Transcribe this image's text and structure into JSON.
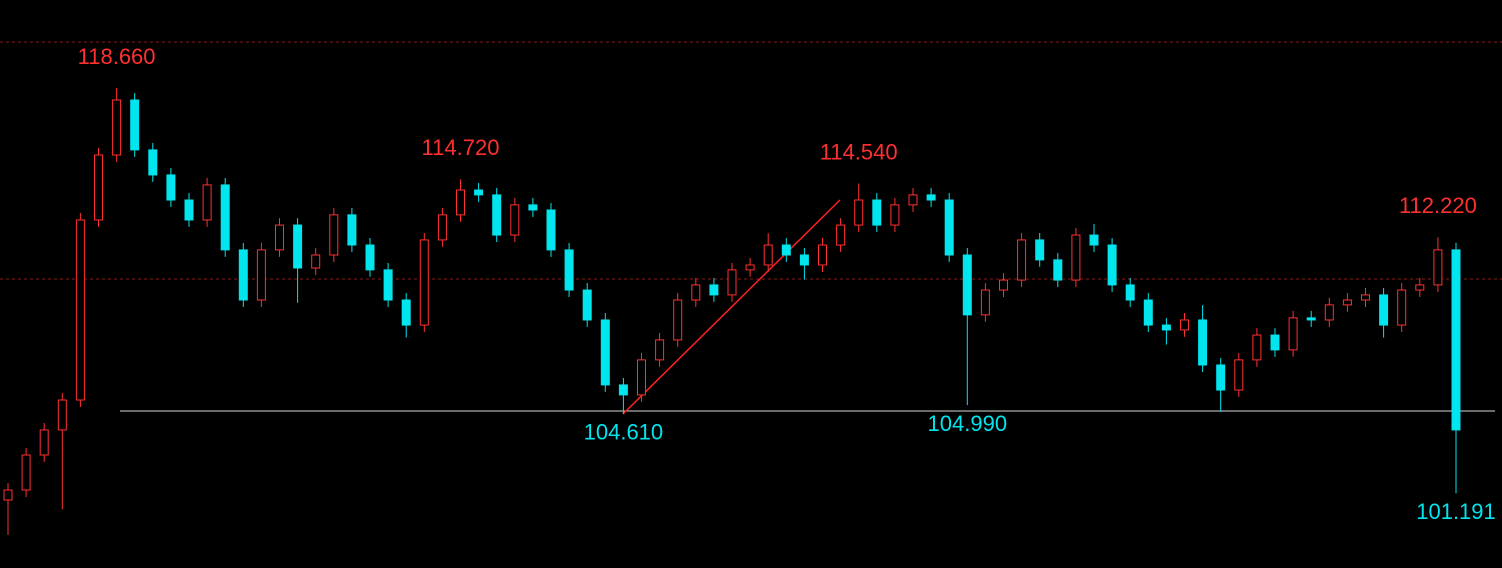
{
  "chart_data": {
    "type": "candlestick",
    "up_color": "#ff3030",
    "down_color": "#00e5ee",
    "ylim": [
      97.97,
      122.45
    ],
    "open": [
      100.9,
      101.33,
      102.84,
      103.92,
      105.21,
      112.97,
      115.77,
      118.14,
      115.99,
      114.91,
      113.83,
      112.97,
      114.48,
      111.68,
      109.52,
      111.68,
      112.75,
      110.9,
      111.46,
      113.19,
      111.89,
      110.82,
      109.52,
      108.44,
      112.11,
      113.19,
      114.26,
      114.05,
      112.32,
      113.62,
      113.4,
      111.68,
      109.95,
      108.66,
      105.86,
      105.43,
      106.94,
      107.8,
      109.52,
      110.17,
      109.74,
      110.82,
      111.03,
      111.89,
      111.46,
      111.03,
      111.89,
      112.75,
      113.83,
      112.75,
      113.62,
      114.05,
      113.83,
      111.46,
      108.88,
      109.95,
      110.38,
      112.11,
      111.25,
      110.38,
      112.32,
      111.89,
      110.17,
      109.52,
      108.44,
      108.23,
      108.66,
      106.72,
      105.64,
      106.94,
      108.01,
      107.37,
      108.75,
      108.66,
      109.31,
      109.52,
      109.74,
      108.44,
      109.95,
      110.17,
      111.68
    ],
    "high": [
      101.63,
      103.14,
      104.22,
      105.51,
      113.27,
      116.07,
      118.66,
      118.44,
      116.29,
      115.21,
      114.13,
      114.78,
      114.78,
      111.98,
      111.98,
      113.05,
      113.05,
      111.76,
      113.49,
      113.49,
      112.19,
      111.12,
      109.82,
      112.41,
      113.49,
      114.72,
      114.56,
      114.35,
      113.92,
      113.92,
      113.7,
      111.98,
      110.25,
      108.96,
      106.16,
      107.24,
      108.1,
      109.82,
      110.47,
      110.47,
      111.12,
      111.33,
      112.4,
      112.19,
      111.76,
      112.19,
      113.05,
      114.54,
      114.13,
      113.92,
      114.35,
      114.35,
      114.13,
      111.76,
      110.25,
      110.68,
      112.41,
      112.41,
      111.55,
      112.62,
      112.8,
      112.19,
      110.47,
      109.82,
      108.74,
      108.96,
      109.3,
      107.02,
      107.24,
      108.31,
      108.31,
      109.05,
      109.05,
      109.61,
      109.82,
      110.04,
      110.04,
      110.25,
      110.47,
      112.22,
      111.98
    ],
    "low": [
      99.4,
      101.03,
      102.54,
      100.5,
      104.91,
      112.67,
      115.47,
      115.69,
      114.61,
      113.53,
      112.67,
      112.67,
      111.38,
      109.22,
      109.22,
      111.38,
      109.4,
      110.6,
      111.16,
      111.59,
      110.52,
      109.22,
      107.9,
      108.14,
      111.81,
      112.89,
      113.75,
      112.02,
      112.02,
      113.1,
      111.38,
      109.65,
      108.36,
      105.56,
      104.61,
      105.13,
      106.64,
      107.5,
      109.22,
      109.44,
      109.44,
      110.52,
      110.73,
      111.16,
      110.4,
      110.73,
      111.59,
      112.45,
      112.45,
      112.45,
      113.32,
      113.53,
      111.16,
      104.99,
      108.58,
      109.65,
      110.08,
      110.95,
      110.08,
      110.08,
      111.59,
      109.87,
      109.22,
      108.14,
      107.6,
      107.93,
      106.42,
      104.7,
      105.34,
      106.64,
      107.07,
      107.07,
      108.36,
      108.36,
      109.01,
      109.22,
      107.9,
      108.14,
      109.65,
      109.87,
      101.191
    ],
    "close": [
      101.33,
      102.84,
      103.92,
      105.21,
      112.97,
      115.77,
      118.14,
      115.99,
      114.91,
      113.83,
      112.97,
      114.48,
      111.68,
      109.52,
      111.68,
      112.75,
      110.9,
      111.46,
      113.19,
      111.89,
      110.82,
      109.52,
      108.44,
      112.11,
      113.19,
      114.26,
      114.05,
      112.32,
      113.62,
      113.4,
      111.68,
      109.95,
      108.66,
      105.86,
      105.43,
      106.94,
      107.8,
      109.52,
      110.17,
      109.74,
      110.82,
      111.03,
      111.89,
      111.46,
      111.03,
      111.89,
      112.75,
      113.83,
      112.75,
      113.62,
      114.05,
      113.83,
      111.46,
      108.88,
      109.95,
      110.38,
      112.11,
      111.25,
      110.38,
      112.32,
      111.89,
      110.17,
      109.52,
      108.44,
      108.23,
      108.66,
      106.72,
      105.64,
      106.94,
      108.01,
      107.37,
      108.75,
      108.66,
      109.31,
      109.52,
      109.74,
      108.44,
      109.95,
      110.17,
      111.68,
      103.92
    ],
    "annotations": [
      {
        "value": 118.66,
        "label": "118.660"
      },
      {
        "value": 114.72,
        "label": "114.720"
      },
      {
        "value": 114.54,
        "label": "114.540"
      },
      {
        "value": 112.22,
        "label": "112.220"
      },
      {
        "value": 104.61,
        "label": "104.610"
      },
      {
        "value": 104.99,
        "label": "104.990"
      },
      {
        "value": 101.191,
        "label": "101.191"
      }
    ]
  }
}
